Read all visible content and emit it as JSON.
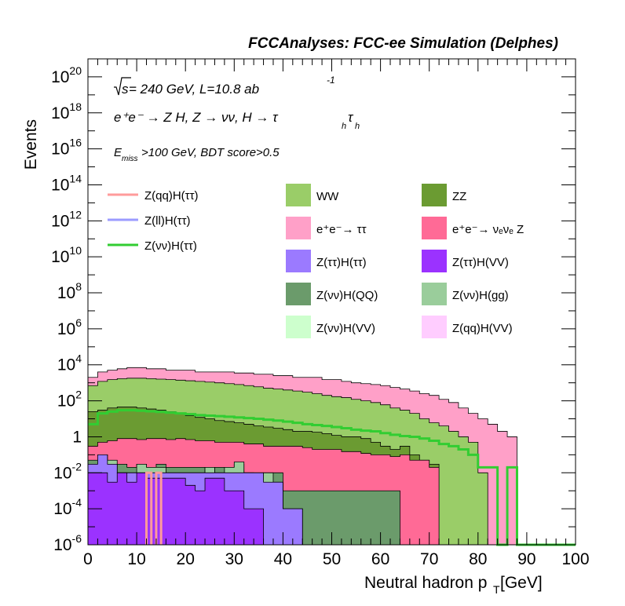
{
  "title": "FCCAnalyses: FCC-ee Simulation (Delphes)",
  "annotations": {
    "line1_sqrt": "s",
    "line1_rest": " = 240 GeV, L=10.8 ab",
    "line1_sup": "-1",
    "line2": "e⁺e⁻ → Z H, Z → νν, H → τ",
    "line2_sub1": "h",
    "line2_tau": "τ",
    "line2_sub2": "h",
    "line3_pre": "E",
    "line3_sub": "miss",
    "line3_post": ">100 GeV, BDT score>0.5"
  },
  "colors": {
    "WW": "#9ACD68",
    "ZZ": "#6B9B32",
    "ee_tautau": "#FFA0C8",
    "ee_nunuZ": "#FF6A96",
    "ZtautauHtautau": "#9B7AFF",
    "ZtautauHVV": "#9B32FF",
    "ZnunuHQQ": "#6B9B6B",
    "ZnunuHgg": "#9ACD9B",
    "ZnunuHVV": "#CDFFCD",
    "ZqqHVV": "#FFCDFF",
    "ZqqHtautau_line": "#FF9B9B",
    "ZllHtautau_line": "#9B9BFF",
    "ZnunuHtautau_line": "#32CD32"
  },
  "chart_data": {
    "type": "area",
    "title": "FCCAnalyses: FCC-ee Simulation (Delphes)",
    "xlabel": "Neutral hadron p",
    "xlabel_sub": "T",
    "xlabel_unit": " [GeV]",
    "ylabel": "Events",
    "xlim": [
      0,
      100
    ],
    "ylim": [
      1e-06,
      1e+21
    ],
    "yscale": "log",
    "bin_width": 2,
    "x_ticks": [
      "0",
      "10",
      "20",
      "30",
      "40",
      "50",
      "60",
      "70",
      "80",
      "90",
      "100"
    ],
    "y_ticks": [
      {
        "base": "10",
        "exp": "-6",
        "value": 1e-06
      },
      {
        "base": "10",
        "exp": "-4",
        "value": 0.0001
      },
      {
        "base": "10",
        "exp": "-2",
        "value": 0.01
      },
      {
        "base": "1",
        "exp": "",
        "value": 1
      },
      {
        "base": "10",
        "exp": "2",
        "value": 100.0
      },
      {
        "base": "10",
        "exp": "4",
        "value": 10000.0
      },
      {
        "base": "10",
        "exp": "6",
        "value": 1000000.0
      },
      {
        "base": "10",
        "exp": "8",
        "value": 100000000.0
      },
      {
        "base": "10",
        "exp": "10",
        "value": 10000000000.0
      },
      {
        "base": "10",
        "exp": "12",
        "value": 1000000000000.0
      },
      {
        "base": "10",
        "exp": "14",
        "value": 100000000000000.0
      },
      {
        "base": "10",
        "exp": "16",
        "value": 1e+16
      },
      {
        "base": "10",
        "exp": "18",
        "value": 1e+18
      },
      {
        "base": "10",
        "exp": "20",
        "value": 1e+20
      }
    ],
    "stack_envelopes": [
      {
        "name": "ee_tautau",
        "label": "e⁺e⁻→ ττ",
        "values": [
          2000.0,
          4000.0,
          5000.0,
          6000.0,
          7000.0,
          7000.0,
          6000.0,
          6000.0,
          5000.0,
          5000.0,
          5000.0,
          4000.0,
          4000.0,
          4000.0,
          4000.0,
          3500.0,
          3500.0,
          3000.0,
          3000.0,
          2500.0,
          2500.0,
          2000.0,
          2000.0,
          2000.0,
          1500.0,
          1500.0,
          1200.0,
          1000.0,
          900,
          800,
          700,
          550,
          450,
          350,
          250,
          200,
          120,
          80,
          40,
          20,
          10,
          5,
          2,
          1,
          0,
          0,
          0,
          0,
          0,
          0
        ]
      },
      {
        "name": "WW",
        "label": "WW",
        "values": [
          700,
          1200,
          1500,
          1700,
          1800,
          1800,
          1700,
          1600,
          1500,
          1400,
          1300,
          1200,
          1100,
          1000,
          900,
          800,
          700,
          600,
          500,
          450,
          400,
          350,
          300,
          250,
          200,
          170,
          150,
          120,
          100,
          80,
          60,
          40,
          30,
          20,
          10,
          6,
          4,
          2,
          1,
          0.5,
          0.01,
          0,
          0,
          0,
          0,
          0,
          0,
          0,
          0,
          0
        ]
      },
      {
        "name": "ZZ",
        "label": "ZZ",
        "values": [
          25,
          30,
          40,
          45,
          45,
          40,
          35,
          30,
          25,
          20,
          15,
          12,
          10,
          8,
          7,
          6,
          5,
          4,
          3.5,
          3,
          2.5,
          2,
          2,
          1.8,
          1.5,
          1.2,
          1,
          1,
          0.8,
          0.5,
          0.3,
          0.2,
          0.3,
          0.1,
          0.05,
          0.03,
          0,
          0,
          0,
          0,
          0,
          0,
          0,
          0,
          0,
          0,
          0,
          0,
          0,
          0
        ]
      },
      {
        "name": "ee_nunuZ",
        "label": "e⁺e⁻→ νₑνₑ Z",
        "values": [
          0.3,
          0.5,
          0.6,
          0.8,
          0.8,
          0.7,
          0.8,
          0.8,
          0.7,
          0.8,
          0.7,
          0.6,
          0.6,
          0.5,
          0.5,
          0.5,
          0.4,
          0.4,
          0.3,
          0.3,
          0.3,
          0.3,
          0.25,
          0.2,
          0.2,
          0.2,
          0.15,
          0.15,
          0.12,
          0.1,
          0.1,
          0.08,
          0.1,
          0.05,
          0.05,
          0.02,
          0,
          0,
          0,
          0,
          0,
          0,
          0,
          0,
          0,
          0,
          0,
          0,
          0,
          0
        ]
      },
      {
        "name": "ZnunuHQQ",
        "label": "Z(νν)H(QQ)",
        "values": [
          0.05,
          0.1,
          0.03,
          0.03,
          0.02,
          0.03,
          0.02,
          0.03,
          0.02,
          0.02,
          0.02,
          0.02,
          0.01,
          0.02,
          0.02,
          0.03,
          0.01,
          0.01,
          0.01,
          0.01,
          0.001,
          0.001,
          0.001,
          0.001,
          0.001,
          0.001,
          0.001,
          0.001,
          0.001,
          0.001,
          0.001,
          0.001,
          0,
          0,
          0,
          0,
          0,
          0,
          0,
          0,
          0,
          0,
          0,
          0,
          0,
          0,
          0,
          0,
          0,
          0
        ]
      },
      {
        "name": "ZnunuHgg",
        "label": "Z(νν)H(gg)",
        "values": [
          0.01,
          0.1,
          0.05,
          0.01,
          0.01,
          0.03,
          0.02,
          0.02,
          0.01,
          0.01,
          0.01,
          0.01,
          0.02,
          0.01,
          0.02,
          0.04,
          0.01,
          0.004,
          0.01,
          0.003,
          0.0001,
          0.0001,
          0,
          0,
          0,
          0,
          0,
          0,
          0,
          0,
          0,
          0,
          0,
          0,
          0,
          0,
          0,
          0,
          0,
          0,
          0,
          0,
          0,
          0,
          0,
          0,
          0,
          0,
          0,
          0
        ]
      },
      {
        "name": "ZtautauHtautau",
        "label": "Z(ττ)H(ττ)",
        "values": [
          0.03,
          0.1,
          0.03,
          0.01,
          0.01,
          0.01,
          0.01,
          0.01,
          0.01,
          0.01,
          0.01,
          0.01,
          0.01,
          0.01,
          0.01,
          0.01,
          0.01,
          0.01,
          0.003,
          0.003,
          0.0001,
          0.0001,
          0,
          0,
          0,
          0,
          0,
          0,
          0,
          0,
          0,
          0,
          0,
          0,
          0,
          0,
          0,
          0,
          0,
          0,
          0,
          0,
          0,
          0,
          0,
          0,
          0,
          0,
          0,
          0
        ]
      },
      {
        "name": "ZtautauHVV",
        "label": "Z(ττ)H(VV)",
        "values": [
          0.01,
          0.01,
          0.003,
          0.01,
          0.003,
          0.01,
          0.005,
          0.005,
          0.005,
          0.005,
          0.002,
          0.001,
          0.005,
          0.005,
          0.001,
          0.001,
          0.0001,
          0.0001,
          0,
          0,
          0,
          0,
          0,
          0,
          0,
          0,
          0,
          0,
          0,
          0,
          0,
          0,
          0,
          0,
          0,
          0,
          0,
          0,
          0,
          0,
          0,
          0,
          0,
          0,
          0,
          0,
          0,
          0,
          0,
          0
        ]
      }
    ],
    "lines": [
      {
        "name": "Z(qq)H(ττ)",
        "color_key": "ZqqHtautau_line",
        "width": 3,
        "segments": [
          [
            12,
            13,
            0.01
          ],
          [
            14,
            15,
            0.01
          ]
        ]
      },
      {
        "name": "Z(ll)H(ττ)",
        "color_key": "ZllHtautau_line",
        "width": 3,
        "segments": []
      },
      {
        "name": "Z(νν)H(ττ)",
        "color_key": "ZnunuHtautau_line",
        "width": 3,
        "values": [
          5,
          20,
          25,
          30,
          30,
          28,
          26,
          24,
          22,
          20,
          18,
          16,
          15,
          14,
          13,
          12,
          11,
          10,
          9,
          8,
          7,
          6,
          5,
          4.5,
          4,
          3.5,
          3,
          2.5,
          2.2,
          2,
          1.6,
          1.3,
          1.1,
          1,
          0.8,
          0.6,
          0.4,
          0.3,
          0.2,
          0.1,
          0.02,
          0.02,
          1e-06,
          0.02,
          1e-06,
          1e-06,
          1e-06,
          1e-06,
          1e-06,
          1e-06
        ]
      }
    ],
    "legend_lines": [
      {
        "label": "Z(qq)H(ττ)",
        "color_key": "ZqqHtautau_line"
      },
      {
        "label": "Z(ll)H(ττ)",
        "color_key": "ZllHtautau_line"
      },
      {
        "label": "Z(νν)H(ττ)",
        "color_key": "ZnunuHtautau_line"
      }
    ],
    "legend_boxes": [
      {
        "label": "WW",
        "color_key": "WW"
      },
      {
        "label": "ZZ",
        "color_key": "ZZ"
      },
      {
        "label": "e⁺e⁻→ ττ",
        "color_key": "ee_tautau"
      },
      {
        "label": "e⁺e⁻→ νₑνₑ Z",
        "color_key": "ee_nunuZ"
      },
      {
        "label": "Z(ττ)H(ττ)",
        "color_key": "ZtautauHtautau"
      },
      {
        "label": "Z(ττ)H(VV)",
        "color_key": "ZtautauHVV"
      },
      {
        "label": "Z(νν)H(QQ)",
        "color_key": "ZnunuHQQ"
      },
      {
        "label": "Z(νν)H(gg)",
        "color_key": "ZnunuHgg"
      },
      {
        "label": "Z(νν)H(VV)",
        "color_key": "ZnunuHVV"
      },
      {
        "label": "Z(qq)H(VV)",
        "color_key": "ZqqHVV"
      }
    ],
    "grid": false,
    "legend_position": "top-right"
  }
}
